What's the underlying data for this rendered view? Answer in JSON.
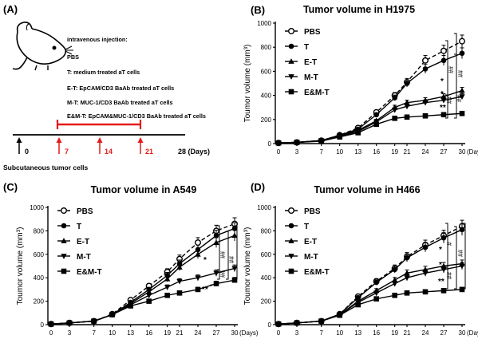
{
  "panel_a": {
    "label": "(A)",
    "injection_title": "intravenous injection:",
    "groups": [
      "PBS",
      "T: medium treated aT cells",
      "E-T: EpCAM/CD3 BaAb treated aT cells",
      "M-T: MUC-1/CD3 BaAb treated aT cells",
      "E&M-T: EpCAM&MUC-1/CD3 BaAb treated aT cells"
    ],
    "timeline": {
      "start": "0",
      "injection_days": [
        "7",
        "14",
        "21"
      ],
      "end_label": "28 (Days)"
    },
    "footer": "Subcutaneous tumor cells",
    "colors": {
      "injection": "#e41b1b",
      "axis": "#000000"
    }
  },
  "chart_data": [
    {
      "label": "(B)",
      "type": "line",
      "title": "Tumor volume in H1975",
      "ylabel": "Toumor volume (mm³)",
      "xunit": "(Days)",
      "x": [
        0,
        3,
        7,
        10,
        13,
        16,
        19,
        21,
        24,
        27,
        30
      ],
      "ylim": [
        0,
        1000
      ],
      "yticks": [
        0,
        200,
        400,
        600,
        800,
        1000
      ],
      "series": [
        {
          "name": "PBS",
          "marker": "open-circle",
          "dashed": true,
          "values": [
            5,
            10,
            25,
            70,
            130,
            260,
            400,
            510,
            690,
            770,
            850
          ]
        },
        {
          "name": "T",
          "marker": "circle",
          "dashed": false,
          "values": [
            5,
            10,
            25,
            70,
            120,
            240,
            380,
            500,
            620,
            690,
            750
          ]
        },
        {
          "name": "E-T",
          "marker": "triangle",
          "dashed": false,
          "values": [
            5,
            10,
            25,
            65,
            110,
            190,
            300,
            340,
            360,
            390,
            440
          ]
        },
        {
          "name": "M-T",
          "marker": "inv-triangle",
          "dashed": false,
          "values": [
            5,
            10,
            25,
            60,
            100,
            180,
            280,
            310,
            340,
            360,
            390
          ]
        },
        {
          "name": "E&M-T",
          "marker": "square",
          "dashed": false,
          "values": [
            5,
            10,
            20,
            55,
            90,
            160,
            210,
            220,
            230,
            240,
            250
          ]
        }
      ],
      "annotations": [
        "*",
        "*",
        "**",
        "##",
        "##",
        "##",
        "##"
      ]
    },
    {
      "label": "(C)",
      "type": "line",
      "title": "Tumor volume in A549",
      "ylabel": "Toumor volume (mm³)",
      "xunit": "(Days)",
      "x": [
        0,
        3,
        7,
        10,
        13,
        16,
        19,
        21,
        24,
        27,
        30
      ],
      "ylim": [
        0,
        1000
      ],
      "yticks": [
        0,
        200,
        400,
        600,
        800,
        1000
      ],
      "series": [
        {
          "name": "PBS",
          "marker": "open-circle",
          "dashed": true,
          "values": [
            5,
            15,
            30,
            90,
            210,
            330,
            450,
            560,
            700,
            800,
            860
          ]
        },
        {
          "name": "T",
          "marker": "circle",
          "dashed": false,
          "values": [
            5,
            15,
            30,
            85,
            190,
            300,
            420,
            520,
            640,
            760,
            820
          ]
        },
        {
          "name": "E-T",
          "marker": "triangle",
          "dashed": false,
          "values": [
            5,
            15,
            30,
            85,
            180,
            280,
            390,
            490,
            600,
            700,
            760
          ]
        },
        {
          "name": "M-T",
          "marker": "inv-triangle",
          "dashed": false,
          "values": [
            5,
            15,
            30,
            85,
            170,
            250,
            320,
            370,
            400,
            440,
            480
          ]
        },
        {
          "name": "E&M-T",
          "marker": "square",
          "dashed": false,
          "values": [
            5,
            15,
            30,
            85,
            160,
            200,
            250,
            270,
            300,
            350,
            380
          ]
        }
      ],
      "annotations": [
        "*",
        "**",
        "*",
        "##",
        "##",
        "##"
      ]
    },
    {
      "label": "(D)",
      "type": "line",
      "title": "Tumor volume in H466",
      "ylabel": "Toumor volume (mm³)",
      "xunit": "(Days)",
      "x": [
        0,
        3,
        7,
        10,
        13,
        16,
        19,
        21,
        24,
        27,
        30
      ],
      "ylim": [
        0,
        1000
      ],
      "yticks": [
        0,
        200,
        400,
        600,
        800,
        1000
      ],
      "series": [
        {
          "name": "PBS",
          "marker": "open-circle",
          "dashed": true,
          "values": [
            5,
            15,
            30,
            90,
            240,
            370,
            480,
            580,
            680,
            760,
            840
          ]
        },
        {
          "name": "T",
          "marker": "circle",
          "dashed": false,
          "values": [
            5,
            15,
            30,
            90,
            230,
            360,
            470,
            570,
            660,
            740,
            810
          ]
        },
        {
          "name": "E-T",
          "marker": "triangle",
          "dashed": false,
          "values": [
            5,
            15,
            30,
            85,
            200,
            290,
            380,
            440,
            470,
            500,
            520
          ]
        },
        {
          "name": "M-T",
          "marker": "inv-triangle",
          "dashed": false,
          "values": [
            5,
            15,
            30,
            85,
            190,
            270,
            350,
            400,
            440,
            470,
            500
          ]
        },
        {
          "name": "E&M-T",
          "marker": "square",
          "dashed": false,
          "values": [
            5,
            15,
            30,
            80,
            170,
            220,
            250,
            270,
            280,
            290,
            300
          ]
        }
      ],
      "annotations": [
        "*",
        "*",
        "**",
        "#",
        "##",
        "##"
      ]
    }
  ]
}
